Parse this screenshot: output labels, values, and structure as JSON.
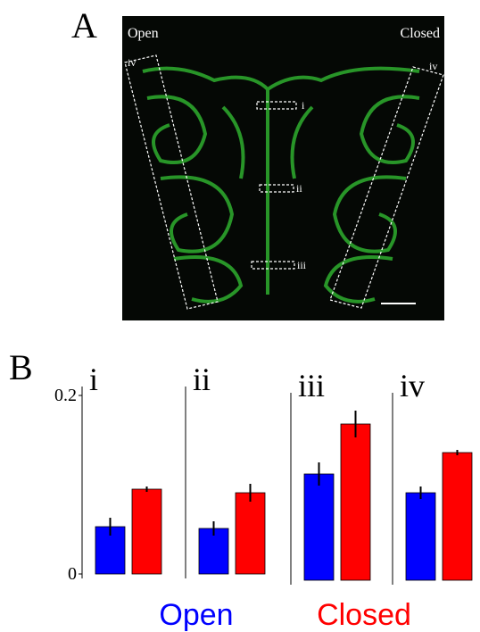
{
  "panel_a": {
    "label": "A",
    "left_label": "Open",
    "right_label": "Closed",
    "roi_labels": [
      "i",
      "ii",
      "iii",
      "iv",
      "iv"
    ]
  },
  "panel_b": {
    "label": "B"
  },
  "chart_data": [
    {
      "type": "bar",
      "title": "i",
      "ylim": [
        0,
        0.2
      ],
      "yticks": [
        0,
        0.2
      ],
      "series": [
        {
          "name": "Open",
          "color": "#0000ff",
          "values": [
            0.053
          ],
          "errors": [
            0.01
          ]
        },
        {
          "name": "Closed",
          "color": "#ff0000",
          "values": [
            0.095
          ],
          "errors": [
            0.003
          ]
        }
      ]
    },
    {
      "type": "bar",
      "title": "ii",
      "ylim": [
        0,
        0.2
      ],
      "series": [
        {
          "color": "#0000ff",
          "values": [
            0.051
          ],
          "errors": [
            0.008
          ]
        },
        {
          "color": "#ff0000",
          "values": [
            0.091
          ],
          "errors": [
            0.01
          ]
        }
      ]
    },
    {
      "type": "bar",
      "title": "iii",
      "ylim": [
        0,
        0.2
      ],
      "series": [
        {
          "color": "#0000ff",
          "values": [
            0.119
          ],
          "errors": [
            0.013
          ]
        },
        {
          "color": "#ff0000",
          "values": [
            0.175
          ],
          "errors": [
            0.015
          ]
        }
      ]
    },
    {
      "type": "bar",
      "title": "iv",
      "ylim": [
        0,
        0.2
      ],
      "series": [
        {
          "color": "#0000ff",
          "values": [
            0.098
          ],
          "errors": [
            0.007
          ]
        },
        {
          "color": "#ff0000",
          "values": [
            0.143
          ],
          "errors": [
            0.003
          ]
        }
      ]
    }
  ]
}
